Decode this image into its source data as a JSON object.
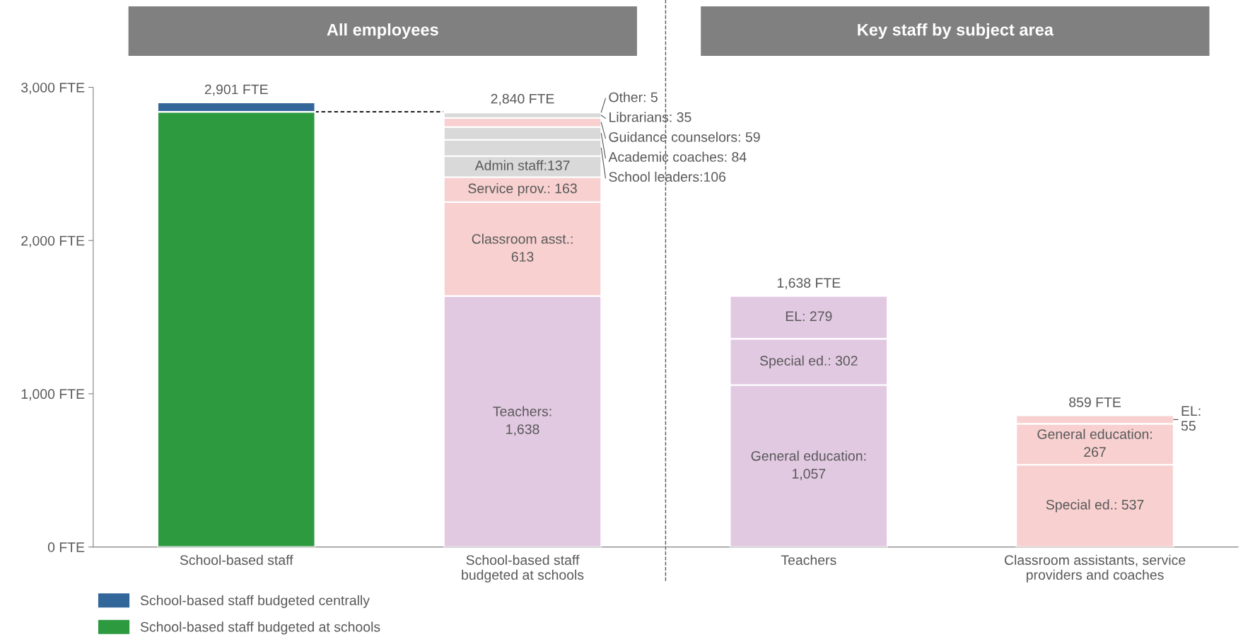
{
  "chart_data": {
    "type": "bar",
    "stacked": true,
    "annotations": [
      "All employees",
      "Key staff by subject area"
    ],
    "categories": [
      "School-based staff",
      "School-based staff\nbudgeted at schools",
      "Teachers",
      "Classroom assistants, service\nproviders and coaches"
    ],
    "series": [
      {
        "name": "School-based staff budgeted at schools",
        "color": "#2e9a40",
        "values": [
          2840,
          null,
          null,
          null
        ]
      },
      {
        "name": "School-based staff budgeted centrally",
        "color": "#336699",
        "values": [
          61,
          null,
          null,
          null
        ]
      },
      {
        "color": "#e2c9e2",
        "values": [
          null,
          1638,
          null,
          null
        ],
        "value_labels": [
          null,
          "Teachers:\n1,638",
          null,
          null
        ]
      },
      {
        "color": "#f8d0d0",
        "values": [
          null,
          613,
          null,
          null
        ],
        "value_labels": [
          null,
          "Classroom asst.:\n613",
          null,
          null
        ]
      },
      {
        "color": "#f8d0d0",
        "values": [
          null,
          163,
          null,
          null
        ],
        "value_labels": [
          null,
          "Service prov.: 163",
          null,
          null
        ]
      },
      {
        "color": "#d9d9d9",
        "values": [
          null,
          137,
          null,
          null
        ],
        "value_labels": [
          null,
          "Admin staff:137",
          null,
          null
        ]
      },
      {
        "color": "#d9d9d9",
        "values": [
          null,
          106,
          null,
          null
        ],
        "value_labels": [
          null,
          "School leaders:106",
          null,
          null
        ]
      },
      {
        "color": "#d9d9d9",
        "values": [
          null,
          84,
          null,
          null
        ],
        "value_labels": [
          null,
          "Academic coaches: 84",
          null,
          null
        ]
      },
      {
        "color": "#f8d0d0",
        "values": [
          null,
          59,
          null,
          null
        ],
        "value_labels": [
          null,
          "Guidance counselors: 59",
          null,
          null
        ]
      },
      {
        "color": "#d9d9d9",
        "values": [
          null,
          35,
          null,
          null
        ],
        "value_labels": [
          null,
          "Librarians: 35",
          null,
          null
        ]
      },
      {
        "color": "#d9d9d9",
        "values": [
          null,
          5,
          null,
          null
        ],
        "value_labels": [
          null,
          "Other: 5",
          null,
          null
        ]
      },
      {
        "color": "#e2c9e2",
        "values": [
          null,
          null,
          1057,
          null
        ],
        "value_labels": [
          null,
          null,
          "General education:\n1,057",
          null
        ]
      },
      {
        "color": "#e2c9e2",
        "values": [
          null,
          null,
          302,
          null
        ],
        "value_labels": [
          null,
          null,
          "Special ed.: 302",
          null
        ]
      },
      {
        "color": "#e2c9e2",
        "values": [
          null,
          null,
          279,
          null
        ],
        "value_labels": [
          null,
          null,
          "EL: 279",
          null
        ]
      },
      {
        "color": "#f8d0d0",
        "values": [
          null,
          null,
          null,
          537
        ],
        "value_labels": [
          null,
          null,
          null,
          "Special ed.: 537"
        ]
      },
      {
        "color": "#f8d0d0",
        "values": [
          null,
          null,
          null,
          267
        ],
        "value_labels": [
          null,
          null,
          null,
          "General education:\n267"
        ]
      },
      {
        "color": "#f8d0d0",
        "values": [
          null,
          null,
          null,
          55
        ],
        "value_labels": [
          null,
          null,
          null,
          "EL:\n55"
        ]
      }
    ],
    "totals": [
      "2,901 FTE",
      "2,840 FTE",
      "1,638 FTE",
      "859 FTE"
    ],
    "ylim": [
      0,
      3000
    ],
    "yticks": [
      {
        "value": 0,
        "label": "0 FTE"
      },
      {
        "value": 1000,
        "label": "1,000 FTE"
      },
      {
        "value": 2000,
        "label": "2,000 FTE"
      },
      {
        "value": 3000,
        "label": "3,000 FTE"
      }
    ],
    "grid": false,
    "legend": "bottom left"
  }
}
